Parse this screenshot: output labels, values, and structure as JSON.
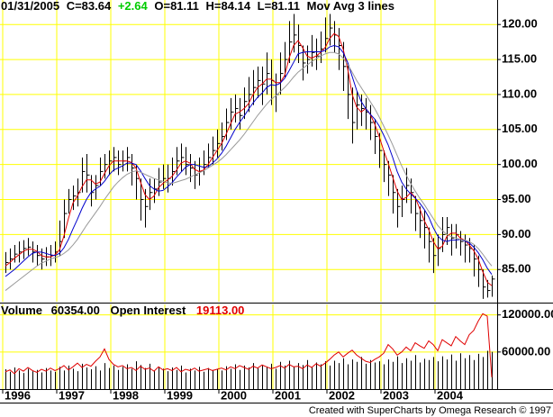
{
  "header": {
    "date": "01/31/2005",
    "close": "C=83.64",
    "change": "+2.64",
    "open": "O=81.11",
    "high": "H=84.14",
    "low": "L=81.11",
    "study": "Mov Avg 3 lines"
  },
  "credit": "Created with SuperCharts by Omega Research © 1997",
  "chart_data": [
    {
      "type": "ohlc",
      "grid": true,
      "ylim": [
        80.4,
        123.5
      ],
      "yticks": [
        {
          "value": 85,
          "label": "85.00"
        },
        {
          "value": 90,
          "label": "90.00"
        },
        {
          "value": 95,
          "label": "95.00"
        },
        {
          "value": 100,
          "label": "100.00"
        },
        {
          "value": 105,
          "label": "105.00"
        },
        {
          "value": 110,
          "label": "110.00"
        },
        {
          "value": 115,
          "label": "115.00"
        },
        {
          "value": 120,
          "label": "120.00"
        }
      ],
      "categories": [
        "1996",
        null,
        null,
        null,
        null,
        null,
        null,
        null,
        null,
        null,
        null,
        null,
        "1997",
        null,
        null,
        null,
        null,
        null,
        null,
        null,
        null,
        null,
        null,
        null,
        "1998",
        null,
        null,
        null,
        null,
        null,
        null,
        null,
        null,
        null,
        null,
        null,
        "1999",
        null,
        null,
        null,
        null,
        null,
        null,
        null,
        null,
        null,
        null,
        null,
        "2000",
        null,
        null,
        null,
        null,
        null,
        null,
        null,
        null,
        null,
        null,
        null,
        "2001",
        null,
        null,
        null,
        null,
        null,
        null,
        null,
        null,
        null,
        null,
        null,
        "2002",
        null,
        null,
        null,
        null,
        null,
        null,
        null,
        null,
        null,
        null,
        null,
        "2003",
        null,
        null,
        null,
        null,
        null,
        null,
        null,
        null,
        null,
        null,
        null,
        "2004",
        null,
        null,
        null,
        null,
        null,
        null,
        null,
        null,
        null,
        null,
        null,
        null
      ],
      "color": "#000000",
      "high": [
        87.5,
        88.0,
        88.5,
        89.0,
        89.2,
        89.5,
        89.0,
        88.5,
        88.0,
        88.2,
        88.5,
        89.0,
        92.0,
        95.0,
        96.5,
        97.0,
        98.0,
        101.0,
        101.5,
        98.5,
        98.5,
        101.0,
        101.5,
        102.0,
        102.5,
        102.0,
        102.0,
        102.5,
        101.5,
        100.0,
        98.0,
        96.5,
        98.0,
        98.0,
        99.5,
        100.0,
        100.0,
        101.0,
        102.5,
        103.0,
        102.5,
        101.5,
        100.5,
        101.0,
        102.0,
        103.0,
        104.0,
        105.0,
        106.0,
        108.0,
        109.5,
        110.0,
        109.5,
        111.0,
        112.5,
        113.5,
        114.0,
        114.0,
        116.0,
        115.0,
        113.0,
        116.0,
        117.5,
        120.5,
        121.5,
        120.0,
        117.0,
        117.0,
        118.5,
        118.0,
        119.0,
        121.0,
        121.5,
        120.5,
        119.5,
        117.5,
        114.5,
        111.0,
        110.5,
        110.0,
        109.5,
        108.5,
        106.5,
        104.5,
        102.0,
        100.5,
        98.5,
        96.5,
        97.0,
        99.5,
        98.0,
        95.5,
        94.0,
        93.5,
        91.0,
        89.5,
        90.0,
        92.5,
        92.5,
        91.5,
        91.5,
        90.5,
        90.0,
        89.5,
        88.5,
        87.0,
        85.0,
        83.5,
        84.14
      ],
      "low": [
        84.5,
        85.0,
        86.0,
        86.0,
        86.5,
        87.0,
        86.0,
        85.5,
        85.0,
        85.5,
        85.5,
        86.0,
        87.0,
        89.5,
        93.0,
        93.5,
        94.0,
        96.0,
        96.0,
        94.0,
        95.0,
        97.0,
        98.0,
        98.5,
        99.0,
        98.5,
        99.0,
        99.0,
        97.0,
        95.0,
        92.0,
        91.0,
        93.5,
        94.5,
        95.5,
        96.5,
        96.0,
        97.0,
        98.5,
        99.0,
        98.5,
        97.5,
        96.5,
        97.0,
        98.5,
        99.5,
        100.0,
        101.0,
        102.0,
        103.5,
        105.0,
        106.0,
        105.0,
        106.5,
        107.5,
        108.5,
        109.5,
        108.5,
        110.0,
        108.5,
        107.5,
        110.0,
        112.5,
        114.5,
        116.0,
        114.5,
        112.0,
        113.0,
        114.0,
        113.5,
        114.5,
        116.0,
        117.0,
        116.0,
        113.5,
        110.5,
        106.5,
        103.0,
        105.0,
        105.5,
        105.0,
        103.5,
        101.5,
        99.5,
        97.5,
        95.5,
        93.0,
        91.0,
        92.5,
        94.5,
        93.0,
        90.5,
        89.5,
        88.0,
        86.0,
        84.5,
        85.5,
        87.5,
        88.5,
        87.0,
        88.0,
        87.0,
        86.0,
        86.0,
        84.0,
        82.5,
        80.8,
        81.0,
        81.11
      ],
      "close": [
        86.0,
        86.5,
        87.2,
        87.5,
        88.0,
        88.2,
        87.5,
        87.0,
        86.5,
        86.8,
        87.0,
        87.5,
        89.0,
        93.0,
        95.0,
        95.5,
        96.0,
        99.0,
        98.5,
        96.0,
        97.0,
        99.0,
        100.0,
        100.5,
        101.0,
        100.0,
        100.5,
        101.0,
        99.5,
        98.0,
        95.0,
        94.0,
        96.0,
        96.5,
        97.5,
        98.0,
        98.0,
        99.0,
        100.5,
        101.0,
        100.0,
        99.5,
        98.5,
        99.0,
        100.0,
        101.0,
        102.0,
        103.0,
        104.0,
        106.0,
        107.5,
        108.0,
        107.0,
        109.0,
        110.0,
        111.0,
        112.0,
        111.5,
        113.0,
        112.0,
        110.0,
        113.0,
        115.0,
        117.5,
        118.5,
        117.0,
        114.5,
        115.0,
        116.0,
        115.5,
        116.5,
        118.0,
        119.5,
        118.5,
        117.0,
        114.0,
        110.0,
        106.0,
        108.5,
        108.0,
        107.5,
        106.0,
        104.0,
        102.0,
        100.0,
        98.5,
        96.0,
        94.0,
        95.0,
        97.0,
        96.0,
        93.0,
        92.0,
        91.0,
        89.0,
        87.0,
        88.0,
        90.0,
        91.0,
        89.5,
        90.0,
        89.0,
        88.5,
        88.0,
        86.5,
        85.0,
        82.5,
        82.0,
        83.64
      ],
      "series": [
        {
          "color": "#e00000",
          "values": [
            85.5,
            86.0,
            86.6,
            87.1,
            87.6,
            87.9,
            87.9,
            87.6,
            87.0,
            86.8,
            86.8,
            87.1,
            87.8,
            89.8,
            92.3,
            94.5,
            95.5,
            96.8,
            97.8,
            97.8,
            97.2,
            97.5,
            98.7,
            99.8,
            100.5,
            100.5,
            100.5,
            100.5,
            100.3,
            99.5,
            97.5,
            95.7,
            95.0,
            95.5,
            96.7,
            97.3,
            97.8,
            98.3,
            99.2,
            100.2,
            100.5,
            100.2,
            99.3,
            99.0,
            99.2,
            100.0,
            101.0,
            102.0,
            103.0,
            104.3,
            105.8,
            107.2,
            107.5,
            108.0,
            108.7,
            110.0,
            111.0,
            111.5,
            112.2,
            112.2,
            111.7,
            111.7,
            112.7,
            115.2,
            117.0,
            117.7,
            116.7,
            115.5,
            115.2,
            115.5,
            116.0,
            116.7,
            118.0,
            118.7,
            118.3,
            116.5,
            113.7,
            110.0,
            108.2,
            107.5,
            108.0,
            107.2,
            105.8,
            104.0,
            102.0,
            100.2,
            98.2,
            96.2,
            95.0,
            95.3,
            96.0,
            95.3,
            93.7,
            92.0,
            90.7,
            89.0,
            88.0,
            88.3,
            89.7,
            90.2,
            90.2,
            89.5,
            89.2,
            88.5,
            87.7,
            86.5,
            84.7,
            83.2,
            82.7
          ]
        },
        {
          "color": "#0000cc",
          "values": [
            84.0,
            84.5,
            85.0,
            85.6,
            86.2,
            86.8,
            87.3,
            87.5,
            87.5,
            87.3,
            87.1,
            87.0,
            87.3,
            88.1,
            89.3,
            90.8,
            92.2,
            93.7,
            95.0,
            96.0,
            96.5,
            96.9,
            97.6,
            98.5,
            99.2,
            99.5,
            99.8,
            100.2,
            100.2,
            100.0,
            99.1,
            98.0,
            97.0,
            96.5,
            96.2,
            96.3,
            96.8,
            97.4,
            98.2,
            98.9,
            99.6,
            100.0,
            100.0,
            99.8,
            99.6,
            99.7,
            100.2,
            100.8,
            101.6,
            102.6,
            103.8,
            105.0,
            106.0,
            106.9,
            107.9,
            108.8,
            109.6,
            110.2,
            111.0,
            111.4,
            111.3,
            111.6,
            112.3,
            113.4,
            114.6,
            115.8,
            116.0,
            116.1,
            116.1,
            116.1,
            116.1,
            116.3,
            116.8,
            117.0,
            116.8,
            116.0,
            114.6,
            112.6,
            110.6,
            109.0,
            108.0,
            107.2,
            106.5,
            105.5,
            104.2,
            102.8,
            101.0,
            99.0,
            97.5,
            96.5,
            95.8,
            95.2,
            94.5,
            93.6,
            92.5,
            91.0,
            89.8,
            89.2,
            89.0,
            89.2,
            89.2,
            89.3,
            89.1,
            88.8,
            88.2,
            87.4,
            86.4,
            85.2,
            84.3
          ]
        },
        {
          "color": "#999999",
          "values": [
            82.0,
            82.5,
            83.0,
            83.5,
            84.0,
            84.5,
            85.0,
            85.5,
            85.9,
            86.2,
            86.5,
            86.7,
            86.9,
            87.3,
            87.8,
            88.5,
            89.3,
            90.3,
            91.3,
            92.2,
            93.1,
            94.0,
            95.0,
            95.9,
            96.8,
            97.5,
            98.1,
            98.6,
            98.9,
            99.1,
            98.9,
            98.6,
            98.3,
            98.0,
            97.8,
            97.6,
            97.4,
            97.3,
            97.5,
            97.7,
            97.9,
            98.2,
            98.5,
            98.8,
            99.1,
            99.5,
            99.9,
            100.3,
            100.8,
            101.4,
            102.1,
            102.8,
            103.5,
            104.3,
            105.2,
            106.1,
            107.0,
            107.8,
            108.6,
            109.3,
            109.8,
            110.4,
            111.0,
            111.7,
            112.5,
            113.2,
            113.7,
            114.2,
            114.7,
            115.1,
            115.5,
            115.8,
            116.0,
            116.0,
            115.8,
            115.2,
            114.3,
            113.2,
            112.0,
            111.0,
            110.0,
            109.0,
            108.0,
            106.8,
            105.5,
            104.2,
            102.8,
            101.3,
            99.8,
            98.5,
            97.3,
            96.2,
            95.2,
            94.3,
            93.3,
            92.3,
            91.3,
            90.6,
            90.0,
            89.7,
            89.5,
            89.3,
            89.2,
            89.0,
            88.6,
            88.0,
            87.2,
            86.3,
            85.5
          ]
        }
      ]
    },
    {
      "type": "bar",
      "grid": true,
      "ylim": [
        0,
        137000
      ],
      "yticks": [
        {
          "value": 60000,
          "label": "60000.00"
        },
        {
          "value": 120000,
          "label": "120000.00"
        }
      ],
      "series": [
        {
          "name": "Volume",
          "type": "bar",
          "color": "#000000",
          "current": "60354.00",
          "values": [
            32000,
            28000,
            35000,
            30000,
            26000,
            33000,
            29000,
            31000,
            27000,
            34000,
            30000,
            28000,
            36000,
            30000,
            38000,
            33000,
            29000,
            41000,
            35000,
            32000,
            37000,
            30000,
            42000,
            34000,
            38000,
            31000,
            36000,
            40000,
            33000,
            45000,
            39000,
            34000,
            41000,
            30000,
            36000,
            33000,
            29000,
            35000,
            31000,
            38000,
            27000,
            33000,
            30000,
            36000,
            28000,
            34000,
            31000,
            32000,
            30000,
            37000,
            33000,
            40000,
            31000,
            38000,
            35000,
            42000,
            34000,
            39000,
            36000,
            41000,
            33000,
            44000,
            38000,
            46000,
            36000,
            42000,
            39000,
            47000,
            35000,
            43000,
            40000,
            45000,
            38000,
            46000,
            42000,
            50000,
            40000,
            48000,
            44000,
            52000,
            41000,
            47000,
            43000,
            45000,
            40000,
            48000,
            44000,
            53000,
            42000,
            50000,
            46000,
            55000,
            43000,
            49000,
            47000,
            52000,
            45000,
            53000,
            48000,
            56000,
            46000,
            58000,
            50000,
            55000,
            47000,
            57000,
            52000,
            62000,
            60354
          ]
        },
        {
          "name": "Open Interest",
          "type": "line",
          "color": "#e00000",
          "current": "19113.00",
          "values": [
            28000,
            31000,
            25000,
            33000,
            29000,
            35000,
            30000,
            27000,
            32000,
            29000,
            34000,
            30000,
            33000,
            38000,
            31000,
            36000,
            42000,
            35000,
            40000,
            37000,
            45000,
            52000,
            65000,
            48000,
            40000,
            36000,
            38000,
            33000,
            35000,
            30000,
            37000,
            32000,
            34000,
            29000,
            36000,
            31000,
            33000,
            30000,
            35000,
            28000,
            32000,
            30000,
            34000,
            29000,
            31000,
            33000,
            30000,
            32000,
            34000,
            31000,
            36000,
            33000,
            38000,
            35000,
            32000,
            37000,
            34000,
            39000,
            36000,
            33000,
            35000,
            38000,
            34000,
            40000,
            36000,
            37000,
            33000,
            39000,
            35000,
            41000,
            37000,
            42000,
            48000,
            55000,
            60000,
            52000,
            58000,
            63000,
            55000,
            50000,
            45000,
            43000,
            48000,
            52000,
            58000,
            72000,
            65000,
            55000,
            60000,
            68000,
            62000,
            75000,
            70000,
            66000,
            78000,
            72000,
            62000,
            80000,
            75000,
            70000,
            85000,
            78000,
            72000,
            88000,
            95000,
            110000,
            122000,
            118000,
            19113
          ]
        }
      ]
    }
  ]
}
